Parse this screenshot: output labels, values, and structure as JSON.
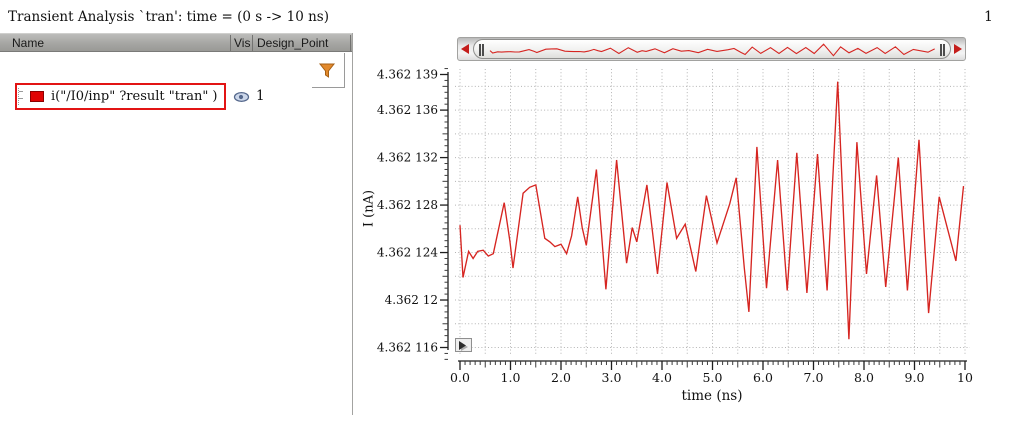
{
  "window": {
    "title": "Transient Analysis `tran': time = (0 s -> 10 ns)",
    "page_number": "1"
  },
  "trace_table": {
    "columns": [
      {
        "label": "Name"
      },
      {
        "label": "Vis"
      },
      {
        "label": "Design_Point"
      }
    ],
    "filter_icon": "funnel-icon",
    "rows": [
      {
        "name": "i(\"/I0/inp\" ?result \"tran\" )",
        "vis_icon": "eye-icon",
        "design_point": "1",
        "swatch_color": "#e00404",
        "selected": true
      }
    ]
  },
  "overview_bar": {
    "left_icon": "left-arrow-icon",
    "right_icon": "right-arrow-icon",
    "arrow_color": "#c41d1b"
  },
  "colors": {
    "waveform": "#d62521",
    "selection_border": "#e21414",
    "filter_orange": "#e2892c",
    "eye_blue": "#55688c"
  },
  "chart_data": {
    "type": "line",
    "title": "Transient Analysis `tran': time = (0 s -> 10 ns)",
    "xlabel": "time (ns)",
    "ylabel": "I (nA)",
    "xlim": [
      0,
      10
    ],
    "ylim": [
      4.3621152,
      4.3621398
    ],
    "x_tick_values": [
      0,
      1,
      2,
      3,
      4,
      5,
      6,
      7,
      8,
      9,
      10
    ],
    "x_tick_labels": [
      "0.0",
      "1.0",
      "2.0",
      "3.0",
      "4.0",
      "5.0",
      "6.0",
      "7.0",
      "8.0",
      "9.0",
      "10"
    ],
    "y_tick_values": [
      4.362139,
      4.362136,
      4.362132,
      4.362128,
      4.362124,
      4.36212,
      4.362116
    ],
    "y_tick_labels": [
      "4.362 139",
      "4.362 136",
      "4.362 132",
      "4.362 128",
      "4.362 124",
      "4.362 12",
      "4.362 116"
    ],
    "grid": {
      "x_step": 0.5,
      "y_start": 4.362116,
      "y_step": 2e-06,
      "y_count": 12,
      "style": "dotted"
    },
    "legend_position": "left-panel",
    "series": [
      {
        "name": "i(\"/I0/inp\" ?result \"tran\" )",
        "color": "#d62521",
        "points": [
          [
            0.0,
            4.3621263
          ],
          [
            0.06,
            4.3621219
          ],
          [
            0.17,
            4.3621241
          ],
          [
            0.26,
            4.3621235
          ],
          [
            0.35,
            4.3621241
          ],
          [
            0.46,
            4.3621242
          ],
          [
            0.56,
            4.3621237
          ],
          [
            0.66,
            4.3621239
          ],
          [
            0.875,
            4.3621282
          ],
          [
            0.99,
            4.3621249
          ],
          [
            1.05,
            4.3621227
          ],
          [
            1.25,
            4.362129
          ],
          [
            1.38,
            4.3621295
          ],
          [
            1.5,
            4.3621297
          ],
          [
            1.68,
            4.3621252
          ],
          [
            1.78,
            4.3621249
          ],
          [
            1.88,
            4.3621245
          ],
          [
            2.0,
            4.3621247
          ],
          [
            2.11,
            4.3621239
          ],
          [
            2.21,
            4.3621254
          ],
          [
            2.33,
            4.3621287
          ],
          [
            2.42,
            4.3621261
          ],
          [
            2.5,
            4.3621246
          ],
          [
            2.7,
            4.362131
          ],
          [
            2.89,
            4.3621209
          ],
          [
            3.1,
            4.3621318
          ],
          [
            3.3,
            4.3621231
          ],
          [
            3.41,
            4.3621261
          ],
          [
            3.5,
            4.3621249
          ],
          [
            3.7,
            4.3621297
          ],
          [
            3.91,
            4.3621222
          ],
          [
            4.1,
            4.3621299
          ],
          [
            4.29,
            4.3621252
          ],
          [
            4.46,
            4.3621264
          ],
          [
            4.67,
            4.3621224
          ],
          [
            4.88,
            4.3621288
          ],
          [
            5.09,
            4.3621248
          ],
          [
            5.34,
            4.3621281
          ],
          [
            5.47,
            4.3621303
          ],
          [
            5.63,
            4.3621227
          ],
          [
            5.72,
            4.362119
          ],
          [
            5.88,
            4.3621329
          ],
          [
            6.07,
            4.362121
          ],
          [
            6.29,
            4.3621318
          ],
          [
            6.48,
            4.3621208
          ],
          [
            6.67,
            4.3621324
          ],
          [
            6.87,
            4.3621206
          ],
          [
            7.08,
            4.3621323
          ],
          [
            7.27,
            4.3621208
          ],
          [
            7.48,
            4.3621384
          ],
          [
            7.7,
            4.3621167
          ],
          [
            7.86,
            4.3621333
          ],
          [
            8.05,
            4.3621222
          ],
          [
            8.25,
            4.3621305
          ],
          [
            8.43,
            4.3621211
          ],
          [
            8.68,
            4.362132
          ],
          [
            8.86,
            4.3621208
          ],
          [
            9.09,
            4.3621335
          ],
          [
            9.28,
            4.3621189
          ],
          [
            9.49,
            4.3621287
          ],
          [
            9.82,
            4.3621233
          ],
          [
            9.97,
            4.3621296
          ]
        ]
      }
    ]
  }
}
